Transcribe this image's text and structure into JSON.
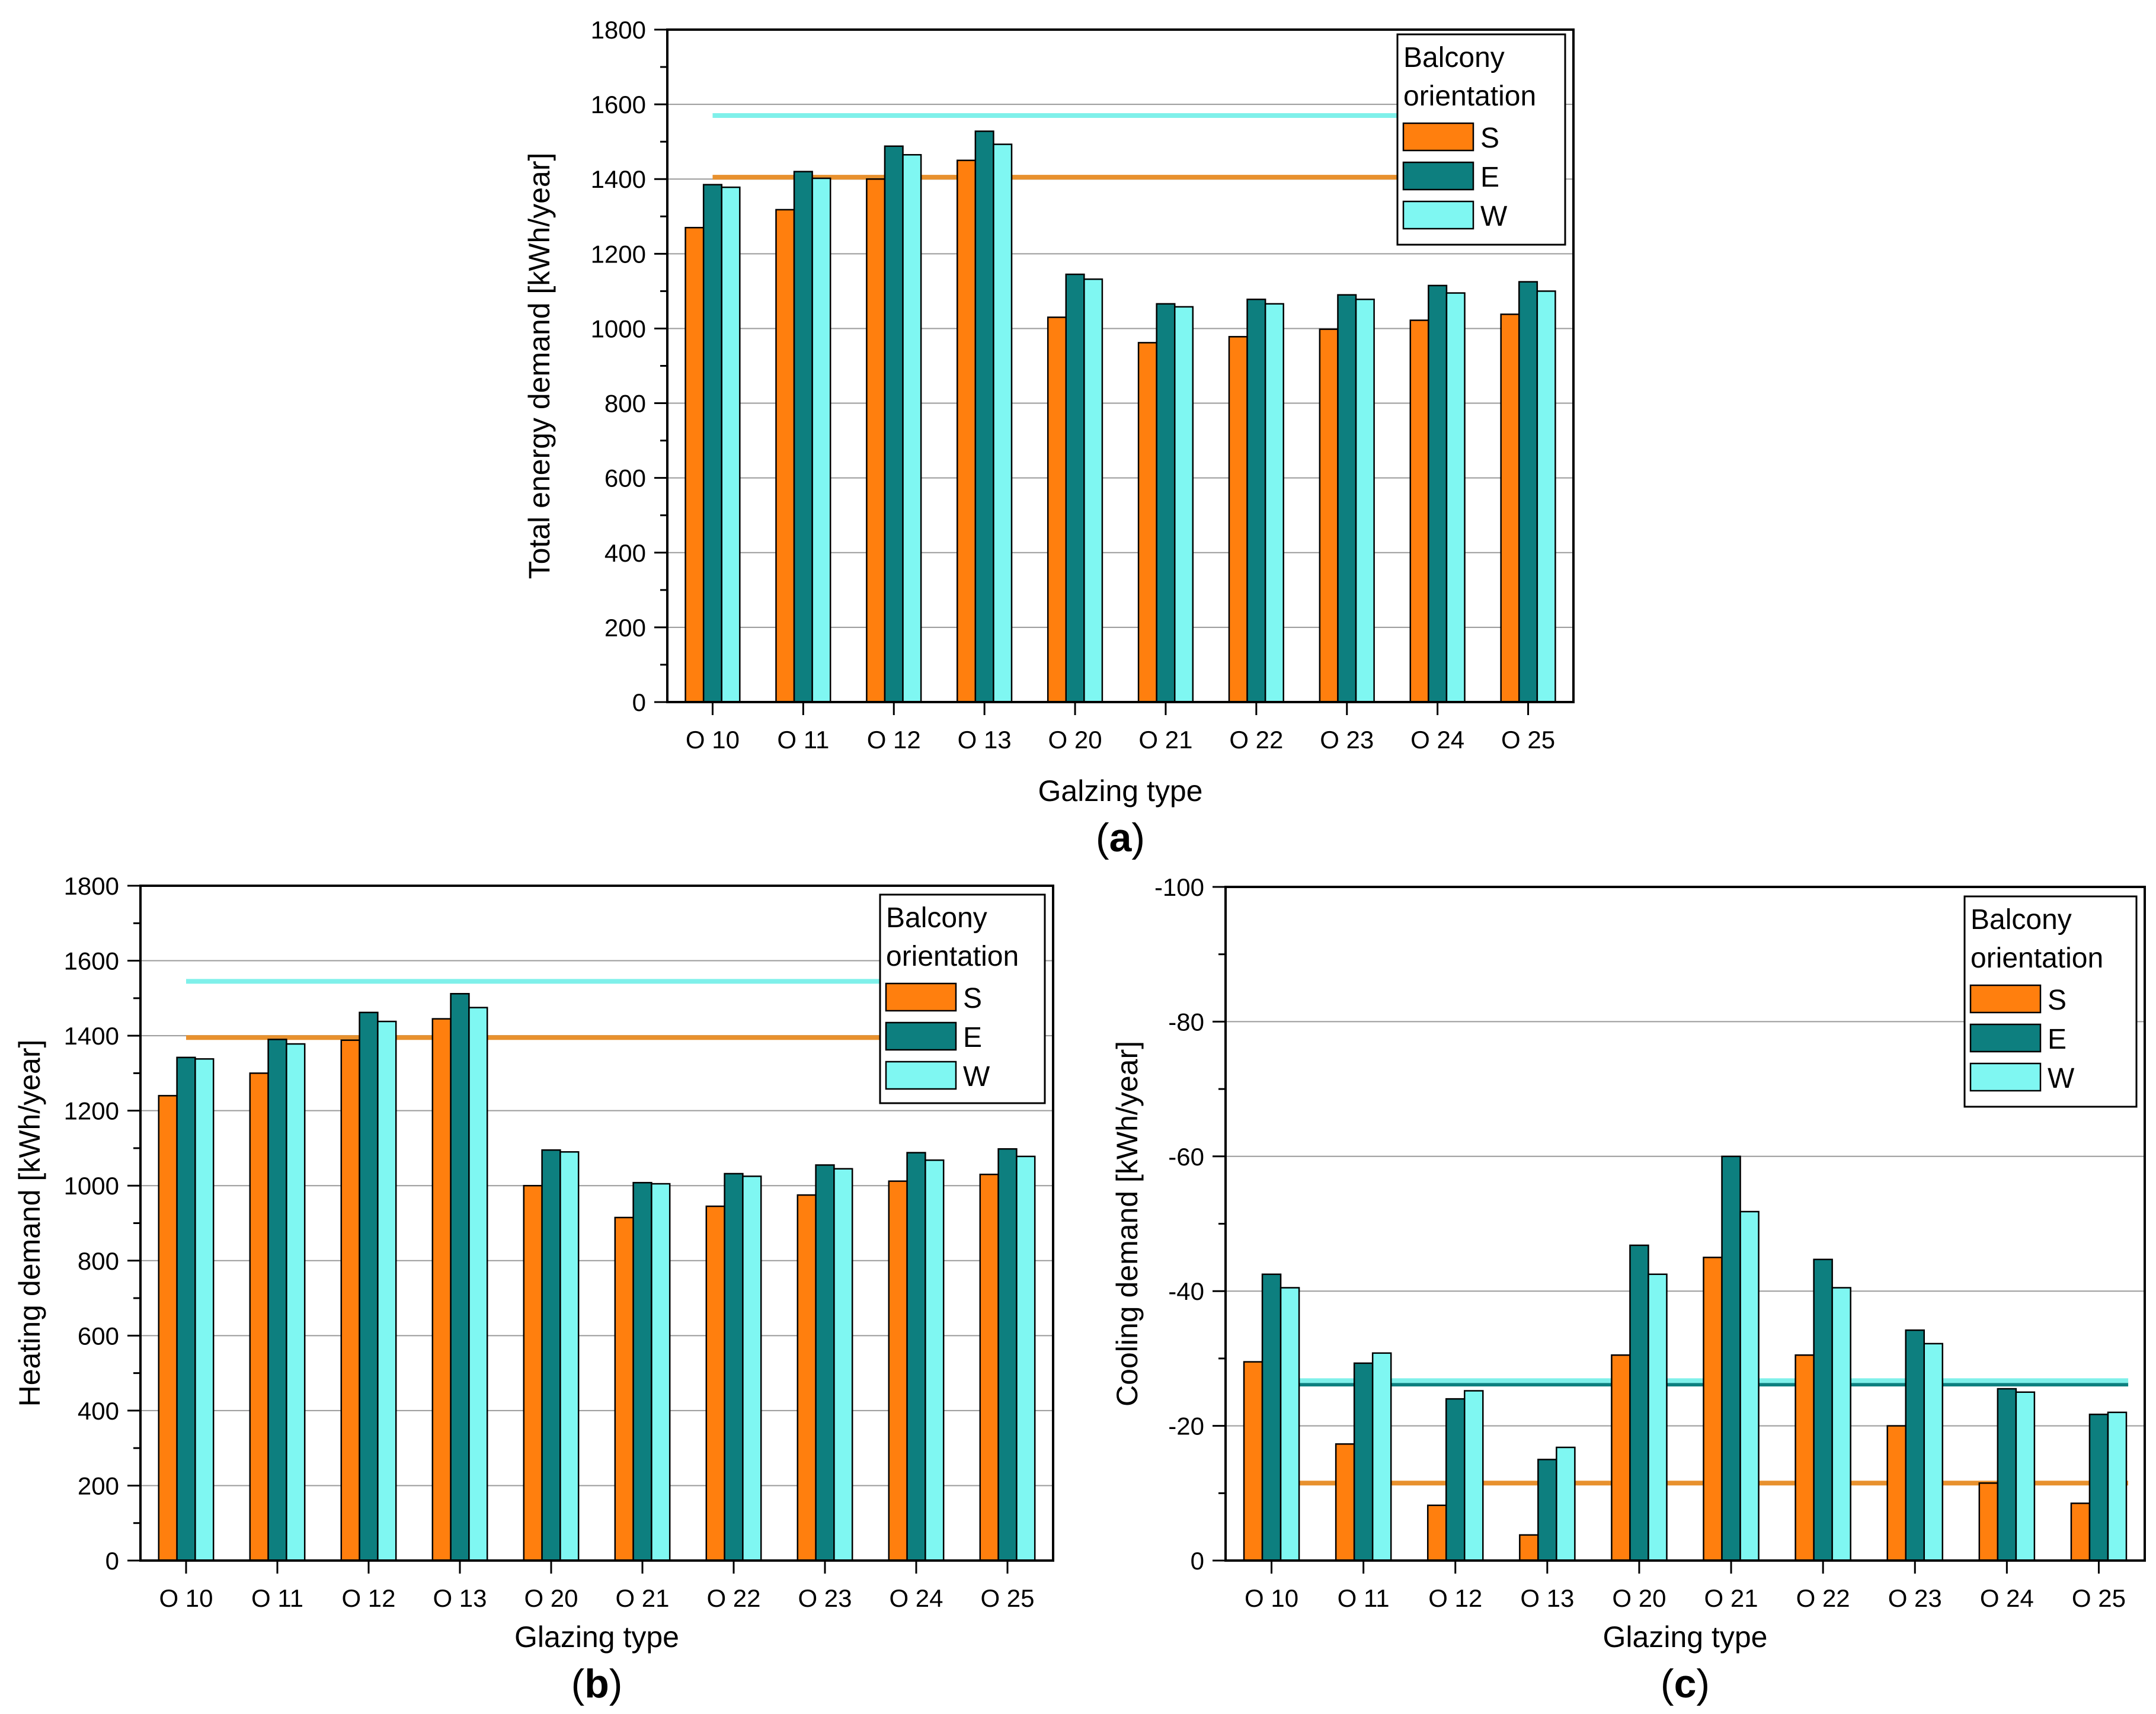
{
  "chart_data": [
    {
      "id": "a",
      "type": "bar",
      "panel_label": "(a)",
      "xlabel": "Galzing type",
      "ylabel": "Total energy demand [kWh/year]",
      "categories": [
        "O 10",
        "O 11",
        "O 12",
        "O 13",
        "O 20",
        "O 21",
        "O 22",
        "O 23",
        "O 24",
        "O 25"
      ],
      "ylim": [
        0,
        1800
      ],
      "yticks": [
        "0",
        "200",
        "400",
        "600",
        "800",
        "1000",
        "1200",
        "1400",
        "1600",
        "1800"
      ],
      "grid": true,
      "legend": {
        "title_line1": "Balcony",
        "title_line2": "orientation",
        "position": "top-right"
      },
      "series": [
        {
          "name": "S",
          "color": "#ff7f0e",
          "values": [
            1270,
            1318,
            1400,
            1450,
            1030,
            962,
            978,
            998,
            1022,
            1038
          ]
        },
        {
          "name": "E",
          "color": "#0d7f7f",
          "values": [
            1385,
            1420,
            1488,
            1528,
            1145,
            1066,
            1078,
            1090,
            1115,
            1125
          ]
        },
        {
          "name": "W",
          "color": "#7ff7f2",
          "values": [
            1378,
            1402,
            1465,
            1493,
            1132,
            1058,
            1066,
            1078,
            1095,
            1100
          ]
        }
      ],
      "reference_lines": [
        {
          "series": "S",
          "value": 1405,
          "color": "#e8912e"
        },
        {
          "series": "W",
          "value": 1570,
          "color": "#7ff0ea"
        }
      ]
    },
    {
      "id": "b",
      "type": "bar",
      "panel_label": "(b)",
      "xlabel": "Glazing type",
      "ylabel": "Heating demand [kWh/year]",
      "categories": [
        "O 10",
        "O 11",
        "O 12",
        "O 13",
        "O 20",
        "O 21",
        "O 22",
        "O 23",
        "O 24",
        "O 25"
      ],
      "ylim": [
        0,
        1800
      ],
      "yticks": [
        "0",
        "200",
        "400",
        "600",
        "800",
        "1000",
        "1200",
        "1400",
        "1600",
        "1800"
      ],
      "grid": true,
      "legend": {
        "title_line1": "Balcony",
        "title_line2": "orientation",
        "position": "top-right"
      },
      "series": [
        {
          "name": "S",
          "color": "#ff7f0e",
          "values": [
            1240,
            1300,
            1388,
            1445,
            1000,
            915,
            945,
            975,
            1012,
            1030
          ]
        },
        {
          "name": "E",
          "color": "#0d7f7f",
          "values": [
            1342,
            1390,
            1462,
            1512,
            1095,
            1008,
            1032,
            1055,
            1088,
            1098
          ]
        },
        {
          "name": "W",
          "color": "#7ff7f2",
          "values": [
            1338,
            1378,
            1438,
            1475,
            1090,
            1005,
            1025,
            1045,
            1068,
            1078
          ]
        }
      ],
      "reference_lines": [
        {
          "series": "S",
          "value": 1395,
          "color": "#e8912e"
        },
        {
          "series": "W",
          "value": 1545,
          "color": "#7ff0ea"
        }
      ]
    },
    {
      "id": "c",
      "type": "bar",
      "panel_label": "(c)",
      "xlabel": "Glazing type",
      "ylabel": "Cooling demand [kWh/year]",
      "categories": [
        "O 10",
        "O 11",
        "O 12",
        "O 13",
        "O 20",
        "O 21",
        "O 22",
        "O 23",
        "O 24",
        "O 25"
      ],
      "ylim": [
        0,
        -100
      ],
      "yticks": [
        "0",
        "-20",
        "-40",
        "-60",
        "-80",
        "-100"
      ],
      "grid": true,
      "legend": {
        "title_line1": "Balcony",
        "title_line2": "orientation",
        "position": "top-right"
      },
      "series": [
        {
          "name": "S",
          "color": "#ff7f0e",
          "values": [
            -29.5,
            -17.3,
            -8.2,
            -3.8,
            -30.5,
            -45,
            -30.5,
            -20,
            -11.5,
            -8.5
          ]
        },
        {
          "name": "E",
          "color": "#0d7f7f",
          "values": [
            -42.5,
            -29.3,
            -24,
            -15,
            -46.8,
            -60,
            -44.7,
            -34.2,
            -25.5,
            -21.7
          ]
        },
        {
          "name": "W",
          "color": "#7ff7f2",
          "values": [
            -40.5,
            -30.8,
            -25.2,
            -16.8,
            -42.5,
            -51.8,
            -40.5,
            -32.2,
            -25,
            -22
          ]
        }
      ],
      "reference_lines": [
        {
          "series": "S",
          "value": -11.5,
          "color": "#e8912e"
        },
        {
          "series": "E",
          "value": -26.2,
          "color": "#0d7f7f"
        },
        {
          "series": "W",
          "value": -26.7,
          "color": "#7ff0ea"
        }
      ]
    }
  ]
}
